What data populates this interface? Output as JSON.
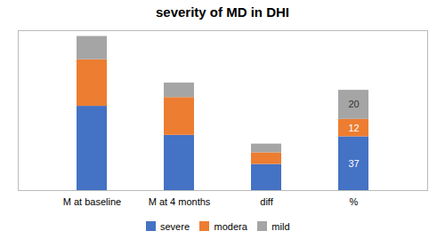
{
  "chart_data": {
    "type": "bar",
    "stacked": true,
    "title": "severity of MD in DHI",
    "categories": [
      "M at baseline",
      "M at 4 months",
      "diff",
      "%"
    ],
    "series": [
      {
        "name": "severe",
        "color": "#4472C4",
        "values": [
          58,
          38,
          18,
          37
        ],
        "value_labels": [
          null,
          null,
          null,
          "37"
        ]
      },
      {
        "name": "modera",
        "color": "#ED7D31",
        "values": [
          32,
          26,
          8,
          12
        ],
        "value_labels": [
          null,
          null,
          null,
          "12"
        ]
      },
      {
        "name": "mild",
        "color": "#A5A5A5",
        "values": [
          16,
          10,
          6,
          20
        ],
        "value_labels": [
          null,
          null,
          null,
          "20"
        ]
      }
    ],
    "ylim": [
      0,
      110
    ],
    "yticks": [],
    "tick_labels": "x",
    "legend": "bottom"
  }
}
